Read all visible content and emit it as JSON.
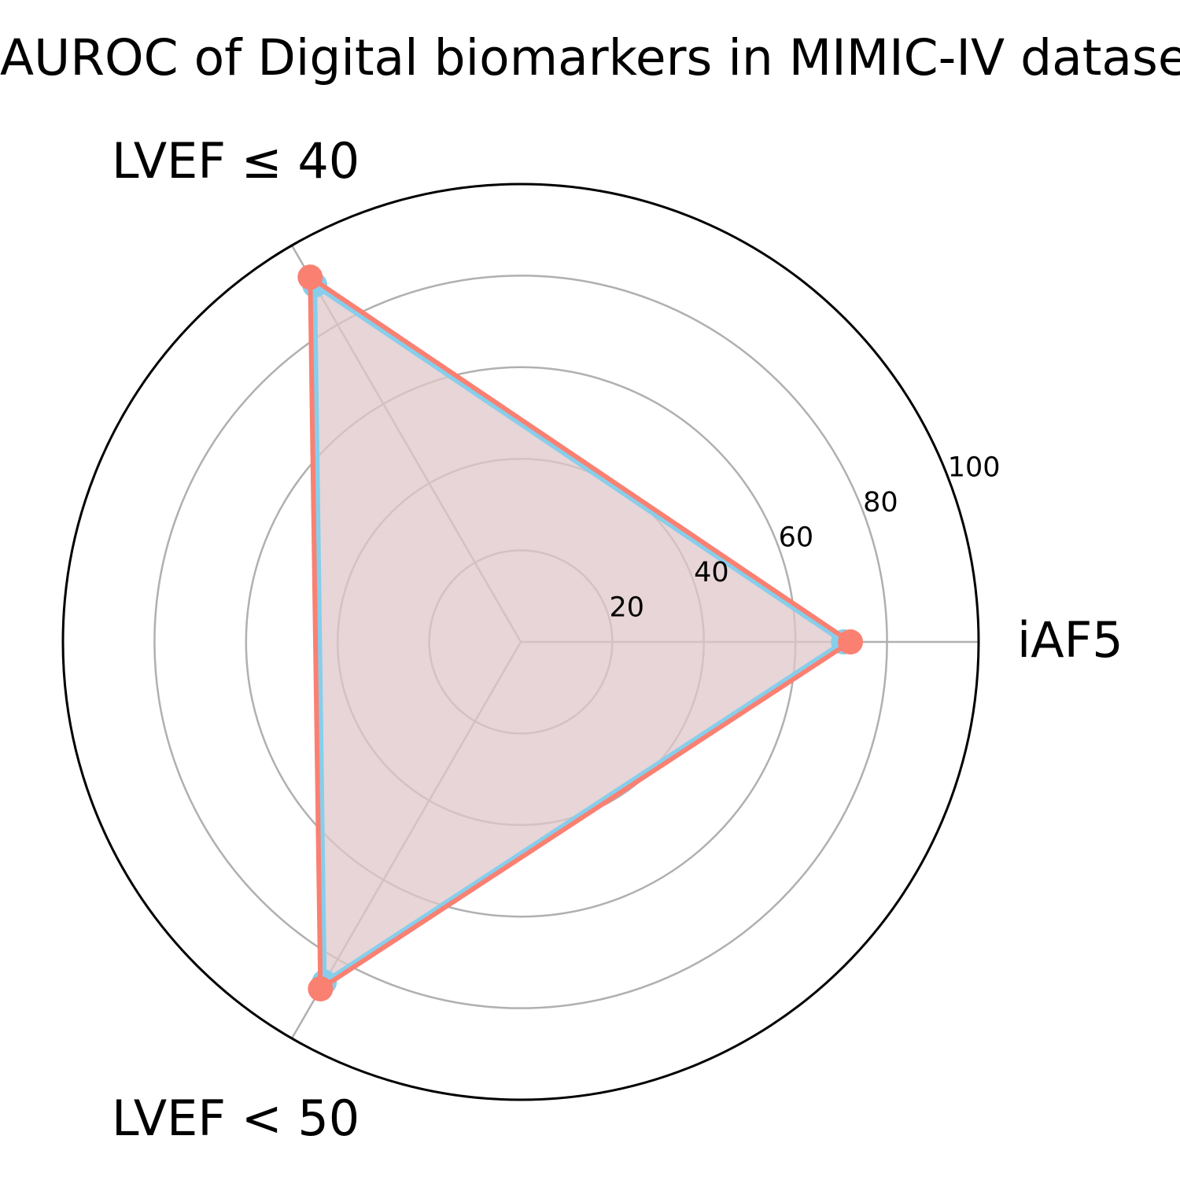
{
  "chart_data": {
    "type": "radar",
    "title": "AUROC of Digital biomarkers in MIMIC-IV dataset.",
    "categories": [
      "iAF5",
      "LVEF ≤ 40",
      "LVEF < 50"
    ],
    "rticks": [
      "20",
      "40",
      "60",
      "80",
      "100"
    ],
    "rtick_values": [
      20,
      40,
      60,
      80,
      100
    ],
    "rlim": [
      0,
      100
    ],
    "grid": true,
    "series": [
      {
        "values": [
          70.5,
          90.0,
          85.8
        ],
        "color": "#87ceeb",
        "marker": "circle"
      },
      {
        "values": [
          72.0,
          92.0,
          87.5
        ],
        "color": "#fa8072",
        "marker": "circle"
      }
    ],
    "fill_color": "#e0c8ca"
  }
}
